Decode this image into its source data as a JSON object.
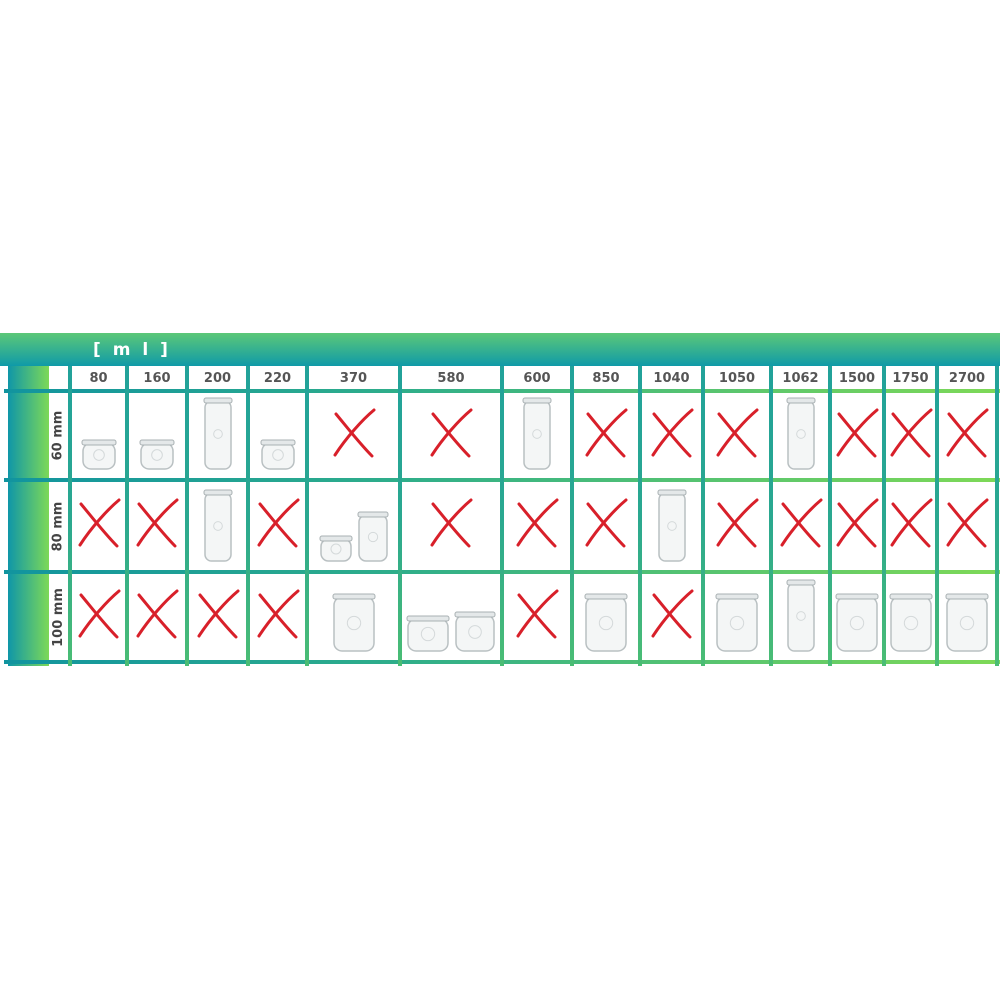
{
  "unit_label": "[ m l ]",
  "columns": [
    "80",
    "160",
    "200",
    "220",
    "370",
    "580",
    "600",
    "850",
    "1040",
    "1050",
    "1062",
    "1500",
    "1750",
    "2700"
  ],
  "rows": [
    {
      "label": "60 mm",
      "cells": [
        "jar",
        "jar",
        "jar",
        "jar",
        "x",
        "x",
        "jar",
        "x",
        "x",
        "x",
        "jar",
        "x",
        "x",
        "x"
      ]
    },
    {
      "label": "80 mm",
      "cells": [
        "x",
        "x",
        "jar",
        "x",
        "jar2",
        "x",
        "x",
        "x",
        "jar",
        "x",
        "x",
        "x",
        "x",
        "x"
      ]
    },
    {
      "label": "100 mm",
      "cells": [
        "x",
        "x",
        "x",
        "x",
        "jar",
        "jar2",
        "x",
        "jar",
        "x",
        "jar",
        "jar",
        "jar",
        "jar",
        "jar"
      ]
    }
  ],
  "colors": {
    "cross": "#d8202a",
    "grid_start": "#11949f",
    "grid_end": "#7ed957"
  }
}
